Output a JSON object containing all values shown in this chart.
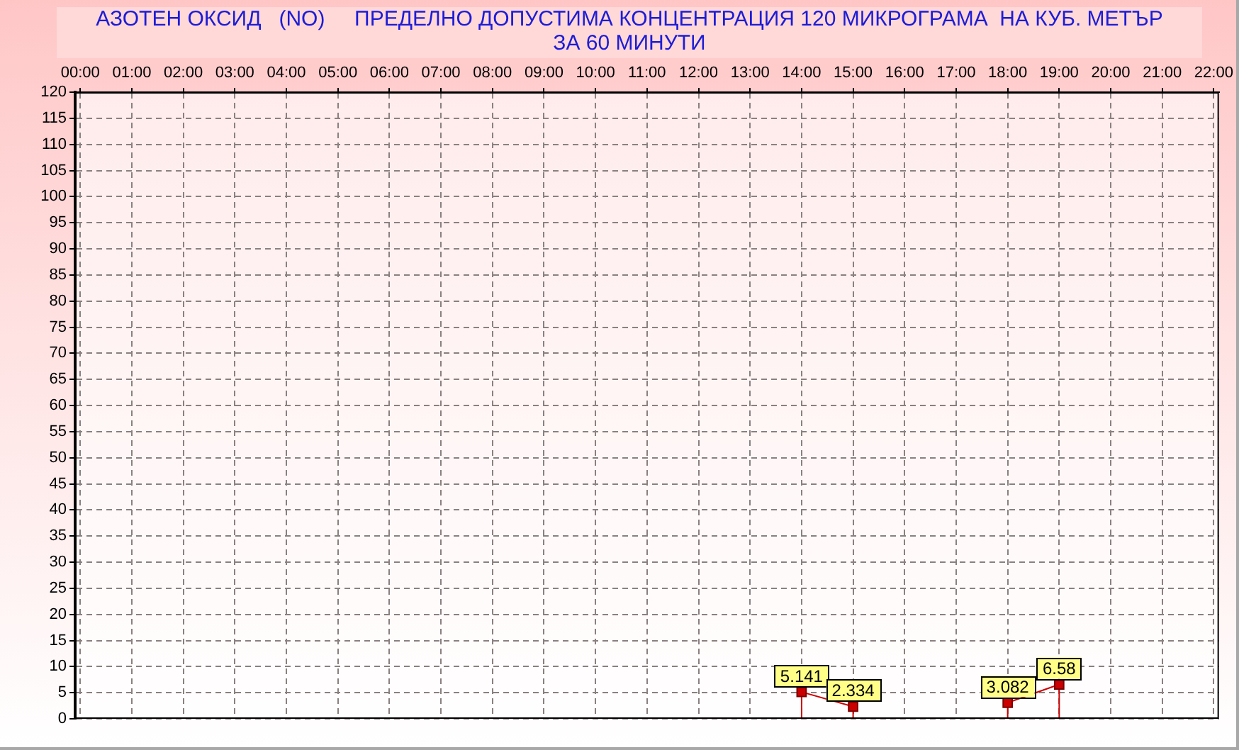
{
  "chart_data": {
    "type": "line",
    "title": "АЗОТЕН ОКСИД   (NO)     ПРЕДЕЛНО ДОПУСТИМА КОНЦЕНТРАЦИЯ 120 МИКРОГРАМА  НА КУБ. МЕТЪР\nЗА 60 МИНУТИ",
    "x": [
      14,
      15,
      16,
      17,
      18,
      19
    ],
    "series": [
      {
        "color": "#cc0000",
        "values": [
          5.141,
          2.334,
          null,
          null,
          3.082,
          6.58
        ]
      }
    ],
    "xlim": [
      -0.1,
      22.1
    ],
    "xticks": [
      {
        "value": 0,
        "label": "00:00"
      },
      {
        "value": 1,
        "label": "01:00"
      },
      {
        "value": 2,
        "label": "02:00"
      },
      {
        "value": 3,
        "label": "03:00"
      },
      {
        "value": 4,
        "label": "04:00"
      },
      {
        "value": 5,
        "label": "05:00"
      },
      {
        "value": 6,
        "label": "06:00"
      },
      {
        "value": 7,
        "label": "07:00"
      },
      {
        "value": 8,
        "label": "08:00"
      },
      {
        "value": 9,
        "label": "09:00"
      },
      {
        "value": 10,
        "label": "10:00"
      },
      {
        "value": 11,
        "label": "11:00"
      },
      {
        "value": 12,
        "label": "12:00"
      },
      {
        "value": 13,
        "label": "13:00"
      },
      {
        "value": 14,
        "label": "14:00"
      },
      {
        "value": 15,
        "label": "15:00"
      },
      {
        "value": 16,
        "label": "16:00"
      },
      {
        "value": 17,
        "label": "17:00"
      },
      {
        "value": 18,
        "label": "18:00"
      },
      {
        "value": 19,
        "label": "19:00"
      },
      {
        "value": 20,
        "label": "20:00"
      },
      {
        "value": 21,
        "label": "21:00"
      },
      {
        "value": 22,
        "label": "22:00"
      }
    ],
    "ylim": [
      0,
      120
    ],
    "yticks": [
      0,
      5,
      10,
      15,
      20,
      25,
      30,
      35,
      40,
      45,
      50,
      55,
      60,
      65,
      70,
      75,
      80,
      85,
      90,
      95,
      100,
      105,
      110,
      115,
      120
    ],
    "grid": true,
    "marker": "square",
    "line_style": "solid",
    "data_labels": true
  }
}
